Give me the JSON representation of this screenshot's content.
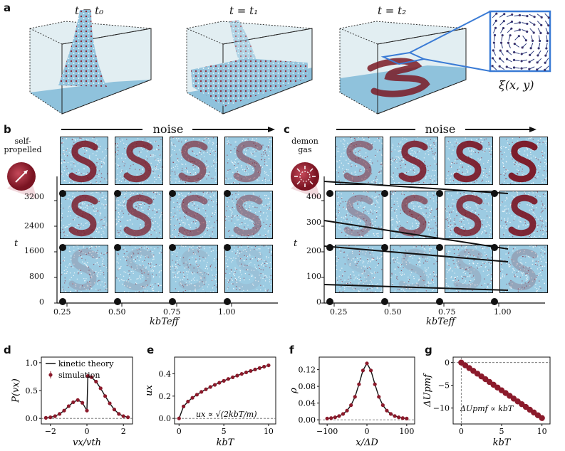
{
  "panels": {
    "a": "a",
    "b": "b",
    "c": "c",
    "d": "d",
    "e": "e",
    "f": "f",
    "g": "g"
  },
  "panel_a": {
    "times": [
      "t = t₀",
      "t = t₁",
      "t = t₂"
    ],
    "field_label": "ξ(x, y)"
  },
  "panel_b": {
    "arrow_label": "noise",
    "particle_label_line1": "self-",
    "particle_label_line2": "propelled",
    "y_label": "t",
    "x_label": "kbTeff",
    "y_ticks": [
      "3200",
      "2400",
      "1600",
      "800",
      "0"
    ],
    "x_ticks": [
      "0.25",
      "0.50",
      "0.75",
      "1.00"
    ]
  },
  "panel_c": {
    "arrow_label": "noise",
    "particle_label_line1": "demon",
    "particle_label_line2": "gas",
    "y_label": "t",
    "x_label": "kbTeff",
    "y_ticks": [
      "400",
      "300",
      "200",
      "100",
      "0"
    ],
    "x_ticks": [
      "0.25",
      "0.50",
      "0.75",
      "1.00"
    ]
  },
  "colors": {
    "water": "#8fc2dc",
    "particle": "#8b1a2b",
    "line": "#111111",
    "highlight": "#3a7bd5"
  },
  "chart_data": [
    {
      "id": "d",
      "type": "line",
      "xlabel": "vx/vth",
      "ylabel": "P(vx)",
      "xlim": [
        -2.5,
        2.5
      ],
      "ylim": [
        -0.1,
        1.1
      ],
      "x_ticks": [
        "−2",
        "0",
        "2"
      ],
      "y_ticks": [
        "0.0",
        "0.5",
        "1.0"
      ],
      "legend": [
        "kinetic theory",
        "simulation"
      ],
      "x": [
        -2.25,
        -2,
        -1.75,
        -1.5,
        -1.25,
        -1,
        -0.75,
        -0.5,
        -0.25,
        0,
        0.05,
        0.25,
        0.5,
        0.75,
        1,
        1.25,
        1.5,
        1.75,
        2,
        2.25
      ],
      "values": [
        0.01,
        0.02,
        0.04,
        0.08,
        0.14,
        0.22,
        0.29,
        0.33,
        0.28,
        0.14,
        0.76,
        0.74,
        0.66,
        0.54,
        0.4,
        0.27,
        0.16,
        0.08,
        0.04,
        0.02
      ]
    },
    {
      "id": "e",
      "type": "line",
      "xlabel": "kbT",
      "ylabel": "ux",
      "xlim": [
        -0.5,
        10.8
      ],
      "ylim": [
        -0.05,
        0.55
      ],
      "x_ticks": [
        "0",
        "5",
        "10"
      ],
      "y_ticks": [
        "0.0",
        "0.2",
        "0.4"
      ],
      "annotation": "ux ∝ √(2kbT/m)",
      "x": [
        0,
        0.5,
        1,
        1.5,
        2,
        2.5,
        3,
        3.5,
        4,
        4.5,
        5,
        5.5,
        6,
        6.5,
        7,
        7.5,
        8,
        8.5,
        9,
        9.5,
        10
      ],
      "values": [
        0.0,
        0.107,
        0.151,
        0.185,
        0.213,
        0.238,
        0.261,
        0.282,
        0.301,
        0.32,
        0.337,
        0.354,
        0.369,
        0.384,
        0.399,
        0.413,
        0.426,
        0.439,
        0.452,
        0.464,
        0.476
      ]
    },
    {
      "id": "f",
      "type": "line",
      "xlabel": "x/ΔD",
      "ylabel": "ρ",
      "xlim": [
        -120,
        120
      ],
      "ylim": [
        -0.01,
        0.15
      ],
      "x_ticks": [
        "−100",
        "0",
        "100"
      ],
      "y_ticks": [
        "0.00",
        "0.04",
        "0.08",
        "0.12"
      ],
      "x": [
        -100,
        -90,
        -80,
        -70,
        -60,
        -50,
        -40,
        -30,
        -20,
        -10,
        0,
        10,
        20,
        30,
        40,
        50,
        60,
        70,
        80,
        90,
        100
      ],
      "values": [
        0.003,
        0.004,
        0.006,
        0.009,
        0.014,
        0.022,
        0.035,
        0.055,
        0.085,
        0.118,
        0.135,
        0.118,
        0.085,
        0.055,
        0.035,
        0.022,
        0.014,
        0.009,
        0.006,
        0.004,
        0.003
      ]
    },
    {
      "id": "g",
      "type": "line",
      "xlabel": "kbT",
      "ylabel": "ΔUpmf",
      "xlim": [
        -1,
        11
      ],
      "ylim": [
        -13.5,
        1.2
      ],
      "x_ticks": [
        "0",
        "5",
        "10"
      ],
      "y_ticks": [
        "0",
        "−5",
        "−10"
      ],
      "annotation": "ΔUpmf ∝ kbT",
      "x": [
        0,
        0.5,
        1,
        1.5,
        2,
        2.5,
        3,
        3.5,
        4,
        4.5,
        5,
        5.5,
        6,
        6.5,
        7,
        7.5,
        8,
        8.5,
        9,
        9.5,
        10
      ],
      "values": [
        0,
        -0.61,
        -1.22,
        -1.83,
        -2.44,
        -3.05,
        -3.66,
        -4.27,
        -4.88,
        -5.49,
        -6.1,
        -6.71,
        -7.32,
        -7.93,
        -8.54,
        -9.15,
        -9.76,
        -10.37,
        -10.98,
        -11.59,
        -12.2
      ]
    }
  ]
}
